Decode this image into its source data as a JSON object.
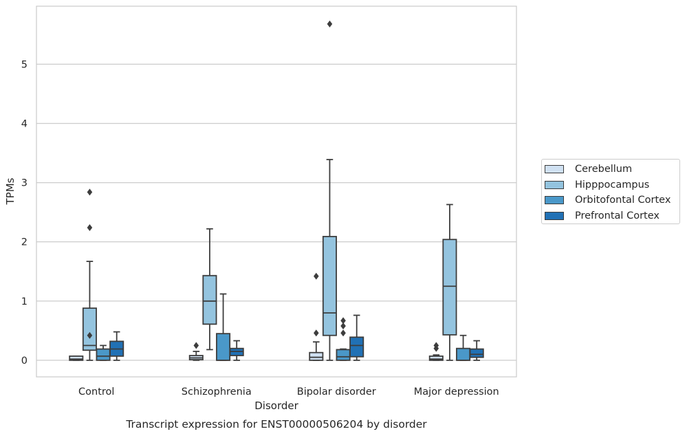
{
  "chart_data": {
    "type": "box",
    "title": "Transcript expression for ENST00000506204 by disorder",
    "xlabel": "Disorder",
    "ylabel": "TPMs",
    "ylim": [
      -0.28,
      5.98
    ],
    "yticks": [
      0,
      1,
      2,
      3,
      4,
      5
    ],
    "grid": "horizontal",
    "legend_position": "right",
    "categories": [
      "Control",
      "Schizophrenia",
      "Bipolar disorder",
      "Major depression"
    ],
    "series": [
      {
        "name": "Cerebellum",
        "color": "#d0e1f2",
        "boxes": [
          {
            "whislo": 0.0,
            "q1": 0.0,
            "med": 0.02,
            "q3": 0.07,
            "whishi": 0.07,
            "fliers": []
          },
          {
            "whislo": 0.0,
            "q1": 0.01,
            "med": 0.04,
            "q3": 0.08,
            "whishi": 0.15,
            "fliers": [
              0.25
            ]
          },
          {
            "whislo": 0.0,
            "q1": 0.0,
            "med": 0.05,
            "q3": 0.13,
            "whishi": 0.31,
            "fliers": [
              0.46,
              1.42
            ]
          },
          {
            "whislo": 0.0,
            "q1": 0.0,
            "med": 0.02,
            "q3": 0.07,
            "whishi": 0.09,
            "fliers": [
              0.2,
              0.25
            ]
          }
        ]
      },
      {
        "name": "Hipppocampus",
        "color": "#94c4df",
        "boxes": [
          {
            "whislo": 0.0,
            "q1": 0.17,
            "med": 0.25,
            "q3": 0.88,
            "whishi": 1.67,
            "fliers": [
              0.42,
              2.24,
              2.84
            ]
          },
          {
            "whislo": 0.18,
            "q1": 0.61,
            "med": 1.0,
            "q3": 1.43,
            "whishi": 2.22,
            "fliers": []
          },
          {
            "whislo": 0.0,
            "q1": 0.42,
            "med": 0.8,
            "q3": 2.09,
            "whishi": 3.39,
            "fliers": [
              5.68
            ]
          },
          {
            "whislo": 0.0,
            "q1": 0.43,
            "med": 1.25,
            "q3": 2.04,
            "whishi": 2.63,
            "fliers": []
          }
        ]
      },
      {
        "name": "Orbitofontal Cortex",
        "color": "#4a98c9",
        "boxes": [
          {
            "whislo": 0.0,
            "q1": 0.0,
            "med": 0.07,
            "q3": 0.19,
            "whishi": 0.25,
            "fliers": []
          },
          {
            "whislo": 0.0,
            "q1": 0.0,
            "med": 0.0,
            "q3": 0.45,
            "whishi": 1.12,
            "fliers": []
          },
          {
            "whislo": 0.0,
            "q1": 0.0,
            "med": 0.06,
            "q3": 0.18,
            "whishi": 0.19,
            "fliers": [
              0.46,
              0.58,
              0.67
            ]
          },
          {
            "whislo": 0.0,
            "q1": 0.0,
            "med": 0.0,
            "q3": 0.2,
            "whishi": 0.42,
            "fliers": []
          }
        ]
      },
      {
        "name": "Prefrontal Cortex",
        "color": "#2171b5",
        "boxes": [
          {
            "whislo": 0.0,
            "q1": 0.07,
            "med": 0.19,
            "q3": 0.32,
            "whishi": 0.48,
            "fliers": []
          },
          {
            "whislo": 0.0,
            "q1": 0.08,
            "med": 0.15,
            "q3": 0.2,
            "whishi": 0.33,
            "fliers": []
          },
          {
            "whislo": 0.0,
            "q1": 0.06,
            "med": 0.25,
            "q3": 0.39,
            "whishi": 0.76,
            "fliers": []
          },
          {
            "whislo": 0.0,
            "q1": 0.05,
            "med": 0.1,
            "q3": 0.19,
            "whishi": 0.33,
            "fliers": []
          }
        ]
      }
    ]
  }
}
